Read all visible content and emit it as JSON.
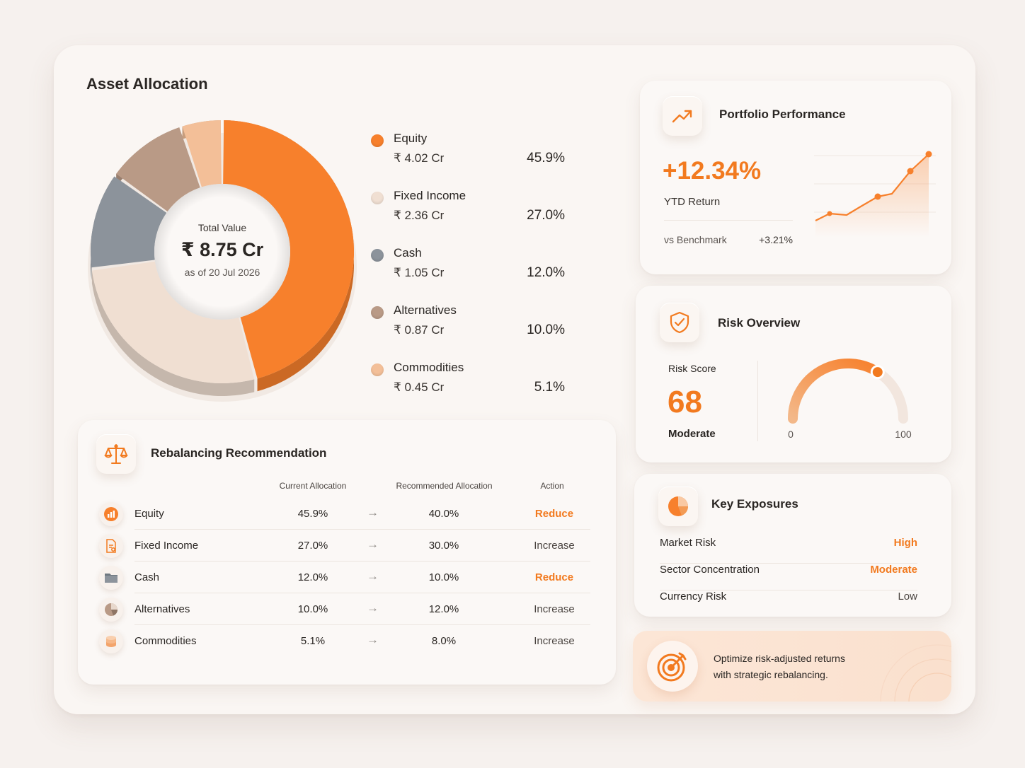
{
  "asset_allocation": {
    "title": "Asset Allocation",
    "center_label": "Total Value",
    "total_value": "₹ 8.75 Cr",
    "as_of": "as of 20 Jul 2026",
    "items": [
      {
        "name": "Equity",
        "value": "₹ 4.02 Cr",
        "percent": "45.9%",
        "share": 45.9,
        "color": "#f7802c"
      },
      {
        "name": "Fixed Income",
        "value": "₹ 2.36 Cr",
        "percent": "27.0%",
        "share": 27.0,
        "color": "#f0dfd2"
      },
      {
        "name": "Cash",
        "value": "₹ 1.05 Cr",
        "percent": "12.0%",
        "share": 12.0,
        "color": "#8c939b"
      },
      {
        "name": "Alternatives",
        "value": "₹ 0.87 Cr",
        "percent": "10.0%",
        "share": 10.0,
        "color": "#b99a86"
      },
      {
        "name": "Commodities",
        "value": "₹ 0.45 Cr",
        "percent": "5.1%",
        "share": 5.1,
        "color": "#f3bf98"
      }
    ]
  },
  "rebalancing": {
    "title": "Rebalancing Recommendation",
    "columns": {
      "current": "Current Allocation",
      "recommended": "Recommended Allocation",
      "action": "Action"
    },
    "arrow": "→",
    "rows": [
      {
        "name": "Equity",
        "current": "45.9%",
        "recommended": "40.0%",
        "action": "Reduce",
        "icon": "bar-chart-icon"
      },
      {
        "name": "Fixed Income",
        "current": "27.0%",
        "recommended": "30.0%",
        "action": "Increase",
        "icon": "document-icon"
      },
      {
        "name": "Cash",
        "current": "12.0%",
        "recommended": "10.0%",
        "action": "Reduce",
        "icon": "folder-icon"
      },
      {
        "name": "Alternatives",
        "current": "10.0%",
        "recommended": "12.0%",
        "action": "Increase",
        "icon": "pie-chart-icon"
      },
      {
        "name": "Commodities",
        "current": "5.1%",
        "recommended": "8.0%",
        "action": "Increase",
        "icon": "coins-icon"
      }
    ]
  },
  "performance": {
    "title": "Portfolio Performance",
    "ytd_value": "+12.34%",
    "ytd_label": "YTD Return",
    "benchmark_label": "vs Benchmark",
    "benchmark_value": "+3.21%",
    "icon": "trending-up-icon"
  },
  "risk": {
    "title": "Risk Overview",
    "score_label": "Risk Score",
    "score": "68",
    "score_value": 68,
    "level": "Moderate",
    "gauge_min": "0",
    "gauge_max": "100",
    "icon": "shield-check-icon"
  },
  "exposures": {
    "title": "Key Exposures",
    "icon": "pie-chart-icon",
    "items": [
      {
        "label": "Market Risk",
        "value": "High",
        "color": "#f27a1f"
      },
      {
        "label": "Sector Concentration",
        "value": "Moderate",
        "color": "#f27a1f"
      },
      {
        "label": "Currency Risk",
        "value": "Low",
        "color": "#4a4440"
      }
    ]
  },
  "banner": {
    "line1": "Optimize risk-adjusted returns",
    "line2": "with strategic rebalancing.",
    "icon": "target-icon"
  },
  "colors": {
    "accent": "#f7802c",
    "accent_text": "#f27a1f"
  }
}
